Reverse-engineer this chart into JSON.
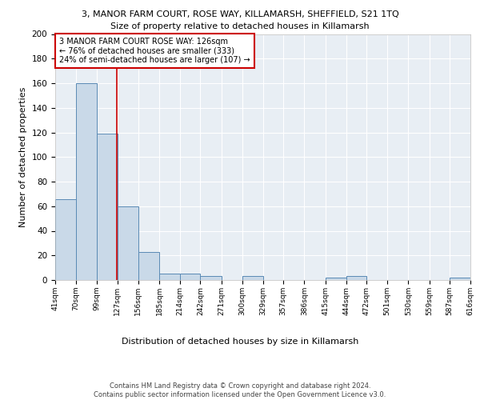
{
  "title": "3, MANOR FARM COURT, ROSE WAY, KILLAMARSH, SHEFFIELD, S21 1TQ",
  "subtitle": "Size of property relative to detached houses in Killamarsh",
  "xlabel": "Distribution of detached houses by size in Killamarsh",
  "ylabel": "Number of detached properties",
  "bin_edges": [
    41,
    70,
    99,
    127,
    156,
    185,
    214,
    242,
    271,
    300,
    329,
    357,
    386,
    415,
    444,
    472,
    501,
    530,
    559,
    587,
    616
  ],
  "bar_heights": [
    66,
    160,
    119,
    60,
    23,
    5,
    5,
    3,
    0,
    3,
    0,
    0,
    0,
    2,
    3,
    0,
    0,
    0,
    0,
    2
  ],
  "bar_color": "#c9d9e8",
  "bar_edge_color": "#5a8ab5",
  "red_line_x": 126,
  "red_line_color": "#cc0000",
  "annotation_text": "3 MANOR FARM COURT ROSE WAY: 126sqm\n← 76% of detached houses are smaller (333)\n24% of semi-detached houses are larger (107) →",
  "annotation_box_color": "#ffffff",
  "annotation_box_edge": "#cc0000",
  "ylim": [
    0,
    200
  ],
  "yticks": [
    0,
    20,
    40,
    60,
    80,
    100,
    120,
    140,
    160,
    180,
    200
  ],
  "footer": "Contains HM Land Registry data © Crown copyright and database right 2024.\nContains public sector information licensed under the Open Government Licence v3.0.",
  "background_color": "#e8eef4",
  "grid_color": "#ffffff"
}
